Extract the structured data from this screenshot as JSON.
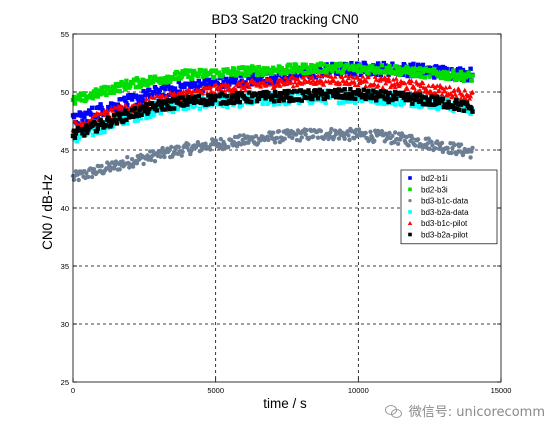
{
  "chart_data": {
    "type": "scatter",
    "title": "BD3 Sat20 tracking CN0",
    "xlabel": "time / s",
    "ylabel": "CN0 / dB-Hz",
    "xlim": [
      0,
      15000
    ],
    "ylim": [
      25,
      55
    ],
    "xticks": [
      0,
      5000,
      10000,
      15000
    ],
    "yticks": [
      25,
      30,
      35,
      40,
      45,
      50,
      55
    ],
    "xtick_labels": [
      "0",
      "5000",
      "10000",
      "15000"
    ],
    "ytick_labels": [
      "25",
      "30",
      "35",
      "40",
      "45",
      "50",
      "55"
    ],
    "grid": true,
    "legend_position": "right",
    "series": [
      {
        "name": "bd2-b1i",
        "color": "#0000ff",
        "marker": "square",
        "x": [
          0,
          1000,
          2000,
          3000,
          4000,
          5000,
          6000,
          7000,
          8000,
          9000,
          10000,
          11000,
          12000,
          13000,
          14000
        ],
        "y": [
          47.5,
          48.5,
          49.2,
          50.0,
          50.5,
          50.7,
          51.0,
          51.3,
          51.6,
          51.9,
          52.0,
          52.0,
          51.9,
          51.7,
          51.5
        ]
      },
      {
        "name": "bd2-b3i",
        "color": "#00dd00",
        "marker": "square",
        "x": [
          0,
          1000,
          2000,
          3000,
          4000,
          5000,
          6000,
          7000,
          8000,
          9000,
          10000,
          11000,
          12000,
          13000,
          14000
        ],
        "y": [
          49.2,
          50.0,
          50.7,
          51.1,
          51.5,
          51.6,
          51.8,
          51.9,
          52.0,
          52.1,
          52.0,
          52.0,
          51.7,
          51.5,
          51.3
        ]
      },
      {
        "name": "bd3-b1c-data",
        "color": "#6c7f94",
        "marker": "dot",
        "x": [
          0,
          1000,
          2000,
          3000,
          4000,
          5000,
          6000,
          7000,
          8000,
          9000,
          10000,
          11000,
          12000,
          13000,
          14000
        ],
        "y": [
          42.6,
          43.3,
          44.0,
          44.6,
          45.1,
          45.5,
          45.8,
          46.1,
          46.3,
          46.4,
          46.3,
          46.1,
          45.8,
          45.3,
          44.8
        ]
      },
      {
        "name": "bd3-b2a-data",
        "color": "#00ffff",
        "marker": "square",
        "x": [
          0,
          1000,
          2000,
          3000,
          4000,
          5000,
          6000,
          7000,
          8000,
          9000,
          10000,
          11000,
          12000,
          13000,
          14000
        ],
        "y": [
          46.0,
          47.0,
          47.9,
          48.6,
          49.0,
          49.2,
          49.3,
          49.4,
          49.5,
          49.6,
          49.6,
          49.5,
          49.3,
          49.0,
          48.6
        ]
      },
      {
        "name": "bd3-b1c-pilot",
        "color": "#ff0000",
        "marker": "triangle",
        "x": [
          0,
          1000,
          2000,
          3000,
          4000,
          5000,
          6000,
          7000,
          8000,
          9000,
          10000,
          11000,
          12000,
          13000,
          14000
        ],
        "y": [
          47.0,
          47.9,
          48.6,
          49.3,
          49.8,
          50.2,
          50.5,
          50.8,
          51.0,
          51.1,
          51.0,
          50.8,
          50.5,
          50.1,
          49.7
        ]
      },
      {
        "name": "bd3-b2a-pilot",
        "color": "#000000",
        "marker": "square",
        "x": [
          0,
          1000,
          2000,
          3000,
          4000,
          5000,
          6000,
          7000,
          8000,
          9000,
          10000,
          11000,
          12000,
          13000,
          14000
        ],
        "y": [
          46.3,
          47.2,
          48.1,
          48.8,
          49.2,
          49.4,
          49.5,
          49.6,
          49.7,
          49.8,
          49.8,
          49.6,
          49.4,
          49.1,
          48.6
        ]
      }
    ]
  },
  "watermark": {
    "text": "微信号: unicorecomm"
  }
}
